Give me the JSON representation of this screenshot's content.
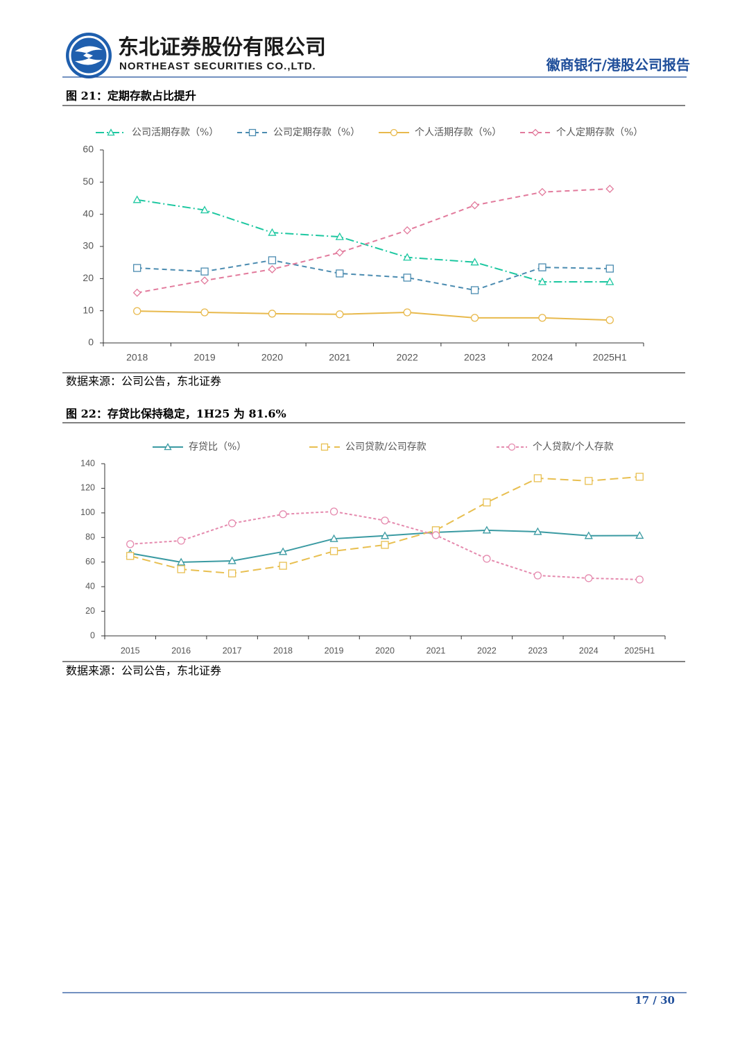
{
  "header": {
    "company_cn": "东北证券股份有限公司",
    "company_en": "NORTHEAST SECURITIES CO.,LTD.",
    "report": "徽商银行/港股公司报告"
  },
  "figures": [
    {
      "title": "图 21：定期存款占比提升",
      "source": "数据来源：公司公告，东北证券",
      "chart_data": {
        "type": "line",
        "categories": [
          "2018",
          "2019",
          "2020",
          "2021",
          "2022",
          "2023",
          "2024",
          "2025H1"
        ],
        "ylim": [
          0,
          60
        ],
        "yticks": [
          0,
          10,
          20,
          30,
          40,
          50,
          60
        ],
        "series": [
          {
            "name": "公司活期存款（%）",
            "color": "#1cc7a0",
            "dash": "dashdot",
            "marker": "triangle",
            "values": [
              44.5,
              41.3,
              34.3,
              33.0,
              26.6,
              25.1,
              19.0,
              19.0
            ]
          },
          {
            "name": "公司定期存款（%）",
            "color": "#4a8bb0",
            "dash": "dashed",
            "marker": "square",
            "values": [
              23.3,
              22.2,
              25.7,
              21.6,
              20.3,
              16.4,
              23.5,
              23.1
            ]
          },
          {
            "name": "个人活期存款（%）",
            "color": "#e8b94c",
            "dash": "solid",
            "marker": "circle",
            "values": [
              9.9,
              9.5,
              9.1,
              8.9,
              9.5,
              7.8,
              7.8,
              7.1
            ]
          },
          {
            "name": "个人定期存款（%）",
            "color": "#e27a9c",
            "dash": "dashed",
            "marker": "diamond",
            "values": [
              15.6,
              19.4,
              22.9,
              28.1,
              35.0,
              42.8,
              46.9,
              47.9
            ]
          }
        ]
      }
    },
    {
      "title": "图 22：存贷比保持稳定，1H25 为 81.6%",
      "source": "数据来源：公司公告，东北证券",
      "chart_data": {
        "type": "line",
        "categories": [
          "2015",
          "2016",
          "2017",
          "2018",
          "2019",
          "2020",
          "2021",
          "2022",
          "2023",
          "2024",
          "2025H1"
        ],
        "ylim": [
          0,
          140
        ],
        "yticks": [
          0,
          20,
          40,
          60,
          80,
          100,
          120,
          140
        ],
        "series": [
          {
            "name": "存贷比（%）",
            "color": "#3a9aa2",
            "dash": "solid",
            "marker": "triangle",
            "values": [
              67.2,
              59.9,
              61.0,
              68.4,
              79.0,
              81.4,
              84.2,
              85.9,
              84.7,
              81.4,
              81.6
            ]
          },
          {
            "name": "公司贷款/公司存款",
            "color": "#e8bf50",
            "dash": "longdash",
            "marker": "square",
            "values": [
              65.0,
              54.2,
              50.8,
              57.0,
              68.9,
              74.0,
              85.9,
              108.5,
              128.2,
              126.0,
              129.4
            ]
          },
          {
            "name": "个人贷款/个人存款",
            "color": "#e58aae",
            "dash": "dotted",
            "marker": "circle",
            "values": [
              74.6,
              77.4,
              91.5,
              98.9,
              101.1,
              93.8,
              81.9,
              62.7,
              49.1,
              46.9,
              45.8
            ]
          }
        ]
      }
    }
  ],
  "footer": {
    "page": "17 / 30"
  }
}
